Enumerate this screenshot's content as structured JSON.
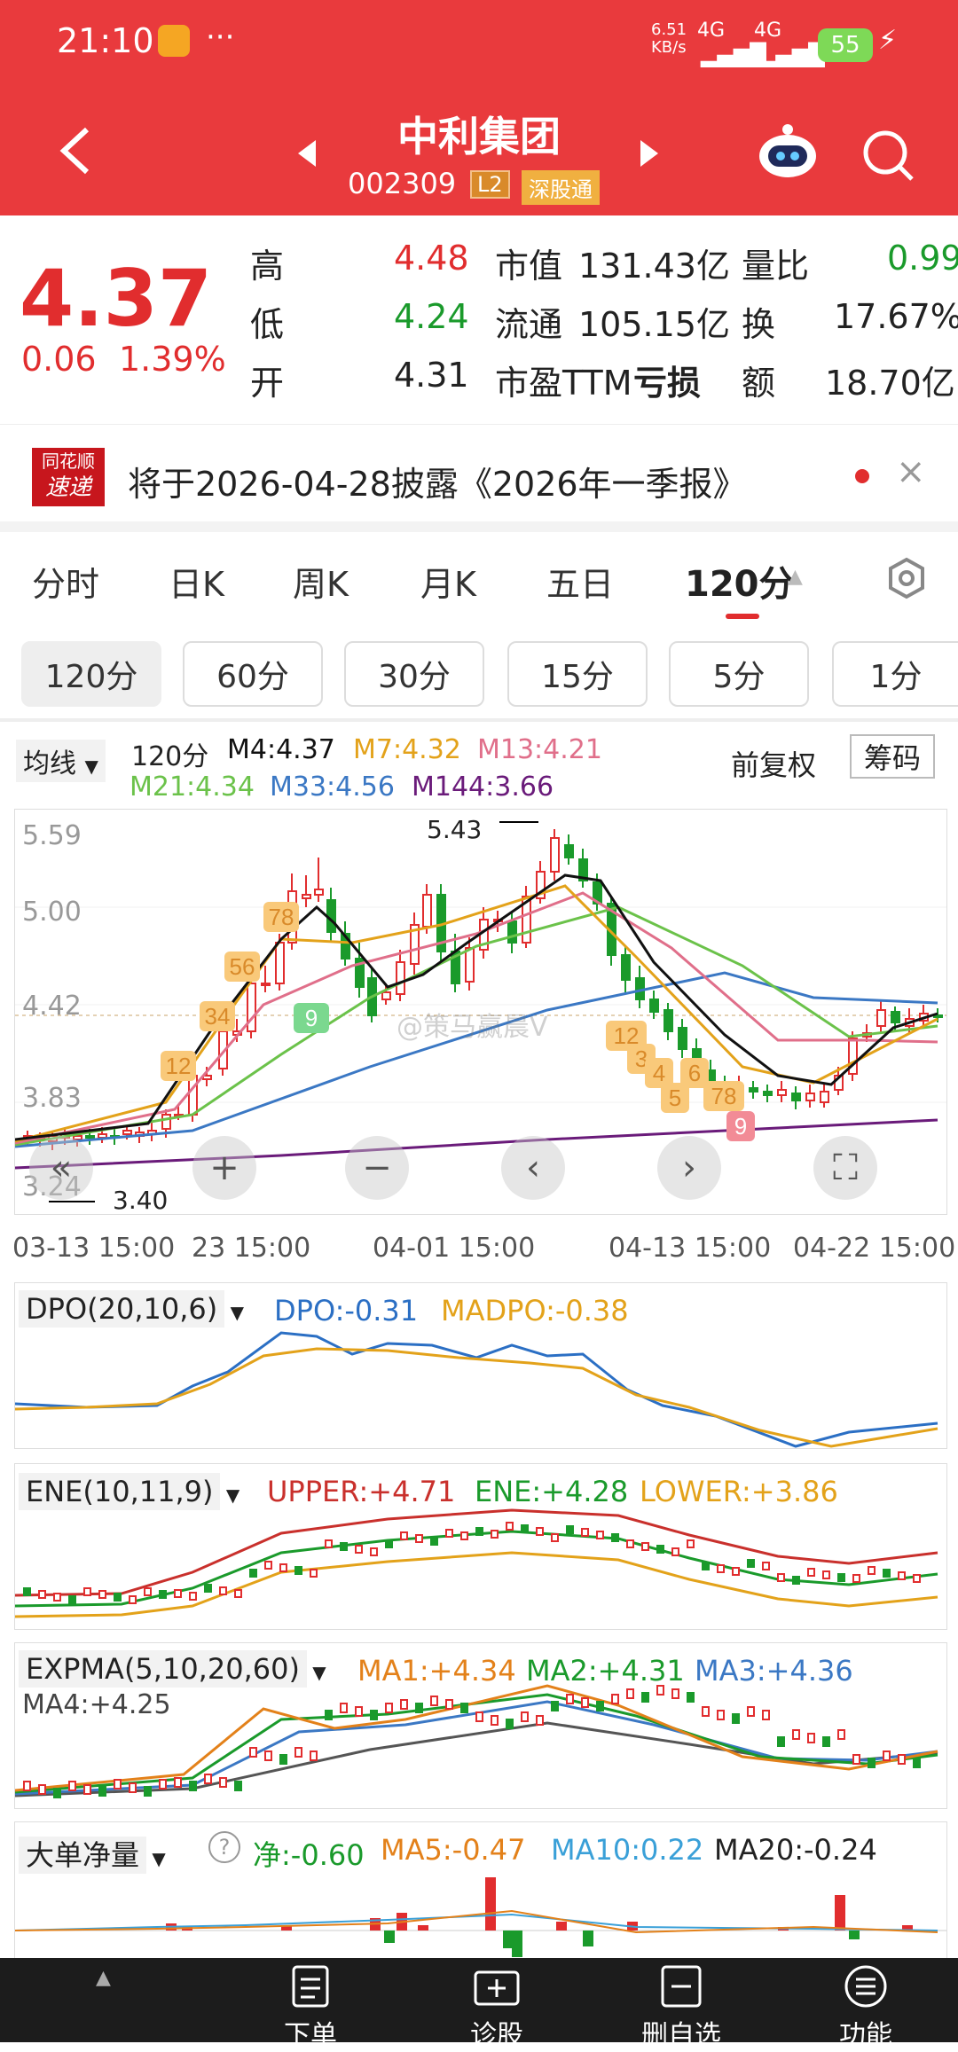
{
  "status": {
    "time": "21:10",
    "speed": "6.51\nKB/s",
    "net1": "4G",
    "net2": "4G",
    "battery": "55"
  },
  "nav": {
    "title": "中利集团",
    "code": "002309",
    "badge_l2": "L2",
    "badge_sgt": "深股通"
  },
  "quote": {
    "price": "4.37",
    "change": "0.06",
    "pct": "1.39%",
    "rows": [
      {
        "l1": "高",
        "v1": "4.48",
        "l2": "市值",
        "v2": "131.43亿",
        "l3": "量比",
        "v3": "0.99"
      },
      {
        "l1": "低",
        "v1": "4.24",
        "l2": "流通",
        "v2": "105.15亿",
        "l3": "换",
        "v3": "17.67%"
      },
      {
        "l1": "开",
        "v1": "4.31",
        "l2": "市盈TTM",
        "v2": "亏损",
        "l3": "额",
        "v3": "18.70亿"
      }
    ]
  },
  "notice": {
    "logo1": "同花顺",
    "logo2": "速递",
    "text": "将于2026-04-28披露《2026年一季报》",
    "close": "×"
  },
  "tabs": [
    "分时",
    "日K",
    "周K",
    "月K",
    "五日",
    "120分"
  ],
  "subtabs": [
    "120分",
    "60分",
    "30分",
    "15分",
    "5分",
    "1分"
  ],
  "ma": {
    "type": "均线",
    "period": "120分",
    "m4": "M4:4.37",
    "m7": "M7:4.32",
    "m13": "M13:4.21",
    "m21": "M21:4.34",
    "m33": "M33:4.56",
    "m144": "M144:3.66",
    "fq": "前复权",
    "chouma": "筹码"
  },
  "kchart": {
    "y_labels": [
      "5.59",
      "5.00",
      "4.42",
      "3.83",
      "3.24"
    ],
    "high_label": "5.43",
    "low_label": "3.40",
    "x_labels": [
      "03-13 15:00",
      "23 15:00",
      "04-01 15:00",
      "04-13 15:00",
      "04-22 15:00"
    ],
    "watermark": "@策马赢晨V",
    "seq_up": [
      "12",
      "34",
      "56",
      "78",
      "9"
    ],
    "seq_down": [
      "12",
      "3",
      "4",
      "5",
      "6",
      "78",
      "9"
    ]
  },
  "dpo": {
    "name": "DPO(20,10,6)",
    "dpo": "DPO:-0.31",
    "madpo": "MADPO:-0.38"
  },
  "ene": {
    "name": "ENE(10,11,9)",
    "upper": "UPPER:+4.71",
    "ene": "ENE:+4.28",
    "lower": "LOWER:+3.86"
  },
  "expma": {
    "name": "EXPMA(5,10,20,60)",
    "ma1": "MA1:+4.34",
    "ma2": "MA2:+4.31",
    "ma3": "MA3:+4.36",
    "ma4": "MA4:+4.25"
  },
  "ddjl": {
    "name": "大单净量",
    "help": "?",
    "jing": "净:-0.60",
    "ma5": "MA5:-0.47",
    "ma10": "MA10:0.22",
    "ma20": "MA20:-0.24"
  },
  "bottom": [
    "下单",
    "诊股",
    "删自选",
    "功能"
  ],
  "colors": {
    "header": "#e93a3d",
    "up": "#e12d2e",
    "down": "#1a9a2b",
    "m4": "#111111",
    "m7": "#e3a21a",
    "m13": "#e06f8a",
    "m21": "#6bc24a",
    "m33": "#3b78c4",
    "m144": "#6a1b7a"
  }
}
